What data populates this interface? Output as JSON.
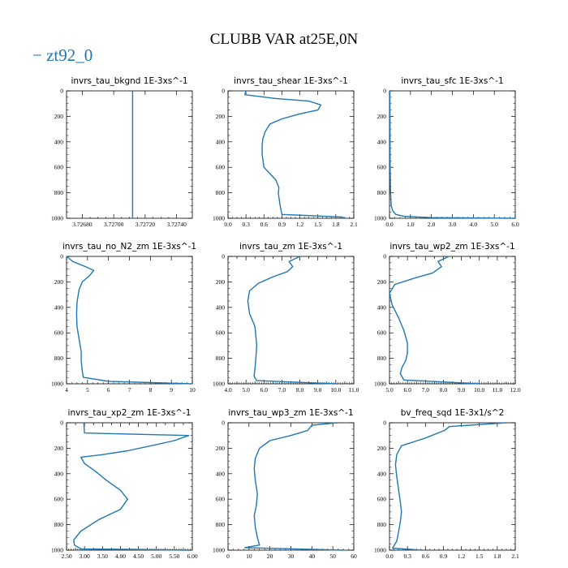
{
  "figure": {
    "title": "CLUBB VAR at25E,0N",
    "legend": {
      "label": "zt92_0",
      "color": "#1f77b4"
    },
    "line_color": "#1f77b4"
  },
  "chart_data": [
    {
      "type": "line",
      "title": "invrs_tau_bkgnd",
      "units": "1E-3xs^-1",
      "xlim": [
        3.7267,
        3.7275
      ],
      "ylim": [
        1000,
        0
      ],
      "xticks": [
        3.7268,
        3.727,
        3.7272,
        3.7274
      ],
      "xtick_labels": [
        "3.72680",
        "3.72700",
        "3.72720",
        "3.72740"
      ],
      "yticks": [
        0,
        200,
        400,
        600,
        800,
        1000
      ],
      "x": [
        3.72712,
        3.72712,
        3.72712
      ],
      "y": [
        0,
        500,
        1000
      ]
    },
    {
      "type": "line",
      "title": "invrs_tau_shear",
      "units": "1E-3xs^-1",
      "xlim": [
        0,
        2.1
      ],
      "ylim": [
        1000,
        0
      ],
      "xticks": [
        0,
        0.3,
        0.6,
        0.9,
        1.2,
        1.5,
        1.8,
        2.1
      ],
      "xtick_labels": [
        "0.0",
        "0.3",
        "0.6",
        "0.9",
        "1.2",
        "1.5",
        "1.8",
        "2.1"
      ],
      "yticks": [
        0,
        200,
        400,
        600,
        800,
        1000
      ],
      "x": [
        0.3,
        0.28,
        0.8,
        1.35,
        1.55,
        1.5,
        1.2,
        0.9,
        0.7,
        0.62,
        0.58,
        0.57,
        0.57,
        0.6,
        0.7,
        0.8,
        0.85,
        0.84,
        0.87,
        0.9,
        1.9,
        1.95
      ],
      "y": [
        0,
        30,
        60,
        80,
        110,
        150,
        180,
        220,
        260,
        320,
        380,
        430,
        500,
        600,
        650,
        700,
        760,
        800,
        900,
        970,
        990,
        1000
      ]
    },
    {
      "type": "line",
      "title": "invrs_tau_sfc",
      "units": "1E-3xs^-1",
      "xlim": [
        0,
        6
      ],
      "ylim": [
        1000,
        0
      ],
      "xticks": [
        0,
        1,
        2,
        3,
        4,
        5,
        6
      ],
      "xtick_labels": [
        "0.0",
        "1.0",
        "2.0",
        "3.0",
        "4.0",
        "5.0",
        "6.0"
      ],
      "yticks": [
        0,
        200,
        400,
        600,
        800,
        1000
      ],
      "x": [
        0.02,
        0.03,
        0.05,
        0.08,
        0.15,
        0.3,
        0.7,
        2.0,
        6.0
      ],
      "y": [
        0,
        600,
        800,
        900,
        940,
        970,
        985,
        995,
        1000
      ]
    },
    {
      "type": "line",
      "title": "invrs_tau_no_N2_zm",
      "units": "1E-3xs^-1",
      "xlim": [
        4,
        10
      ],
      "ylim": [
        1000,
        0
      ],
      "xticks": [
        4,
        5,
        6,
        7,
        8,
        9,
        10
      ],
      "xtick_labels": [
        "4",
        "5",
        "6",
        "7",
        "8",
        "9",
        "10"
      ],
      "yticks": [
        0,
        200,
        400,
        600,
        800,
        1000
      ],
      "x": [
        4.0,
        4.3,
        4.9,
        5.3,
        5.1,
        4.75,
        4.6,
        4.5,
        4.48,
        4.5,
        4.6,
        4.7,
        4.7,
        4.75,
        4.8,
        6.0,
        10.0
      ],
      "y": [
        0,
        40,
        80,
        110,
        150,
        200,
        260,
        360,
        450,
        550,
        650,
        750,
        820,
        900,
        950,
        980,
        1000
      ]
    },
    {
      "type": "line",
      "title": "invrs_tau_zm",
      "units": "1E-3xs^-1",
      "xlim": [
        4,
        11
      ],
      "ylim": [
        1000,
        0
      ],
      "xticks": [
        4,
        4.5,
        5,
        5.5,
        6,
        6.5,
        7,
        7.5,
        8,
        8.5,
        9,
        9.5,
        10,
        10.5,
        11
      ],
      "xtick_labels": [
        "4.0",
        "",
        "5.0",
        "",
        "6.0",
        "",
        "7.0",
        "",
        "8.0",
        "",
        "9.0",
        "",
        "10.0",
        "",
        "11.0"
      ],
      "yticks": [
        0,
        200,
        400,
        600,
        800,
        1000
      ],
      "x": [
        8.0,
        7.4,
        7.6,
        7.3,
        6.5,
        5.7,
        5.2,
        5.1,
        5.2,
        5.5,
        5.6,
        5.55,
        5.5,
        5.45,
        5.6,
        10.0
      ],
      "y": [
        0,
        40,
        80,
        120,
        160,
        210,
        270,
        350,
        450,
        550,
        700,
        800,
        880,
        940,
        975,
        1000
      ]
    },
    {
      "type": "line",
      "title": "invrs_tau_wp2_zm",
      "units": "1E-3xs^-1",
      "xlim": [
        5,
        12
      ],
      "ylim": [
        1000,
        0
      ],
      "xticks": [
        5,
        5.5,
        6,
        6.5,
        7,
        7.5,
        8,
        8.5,
        9,
        9.5,
        10,
        10.5,
        11,
        11.5,
        12
      ],
      "xtick_labels": [
        "5.0",
        "",
        "6.0",
        "",
        "7.0",
        "",
        "8.0",
        "",
        "9.0",
        "",
        "10.0",
        "",
        "11.0",
        "",
        "12.0"
      ],
      "yticks": [
        0,
        200,
        400,
        600,
        800,
        1000
      ],
      "x": [
        8.3,
        7.7,
        7.9,
        7.4,
        6.4,
        5.3,
        5.0,
        5.15,
        5.5,
        5.8,
        6.0,
        6.0,
        5.9,
        5.7,
        5.6,
        5.8,
        10.0
      ],
      "y": [
        0,
        40,
        80,
        130,
        170,
        220,
        290,
        380,
        480,
        580,
        680,
        760,
        820,
        870,
        920,
        970,
        1000
      ]
    },
    {
      "type": "line",
      "title": "invrs_tau_xp2_zm",
      "units": "1E-3xs^-1",
      "xlim": [
        2.5,
        6
      ],
      "ylim": [
        1000,
        0
      ],
      "xticks": [
        2.5,
        2.75,
        3,
        3.25,
        3.5,
        3.75,
        4,
        4.25,
        4.5,
        4.75,
        5,
        5.25,
        5.5,
        5.75,
        6
      ],
      "xtick_labels": [
        "2.50",
        "",
        "3.00",
        "",
        "3.50",
        "",
        "4.00",
        "",
        "4.50",
        "",
        "5.00",
        "",
        "5.50",
        "",
        "6.00"
      ],
      "yticks": [
        0,
        200,
        400,
        600,
        800,
        1000
      ],
      "x": [
        2.98,
        3.0,
        5.9,
        5.5,
        4.7,
        4.2,
        3.5,
        2.9,
        3.0,
        3.3,
        3.6,
        4.0,
        4.2,
        4.0,
        3.4,
        2.9,
        2.7,
        2.72,
        2.9,
        5.9
      ],
      "y": [
        0,
        80,
        100,
        140,
        190,
        220,
        250,
        270,
        320,
        380,
        450,
        530,
        600,
        680,
        760,
        850,
        920,
        960,
        990,
        1000
      ]
    },
    {
      "type": "line",
      "title": "invrs_tau_wp3_zm",
      "units": "1E-3xs^-1",
      "xlim": [
        0,
        60
      ],
      "ylim": [
        1000,
        0
      ],
      "xticks": [
        0,
        10,
        20,
        30,
        40,
        50,
        60
      ],
      "xtick_labels": [
        "0",
        "10",
        "20",
        "30",
        "40",
        "50",
        "60"
      ],
      "yticks": [
        0,
        200,
        400,
        600,
        800,
        1000
      ],
      "x": [
        52.0,
        40.0,
        38.0,
        30.0,
        20.0,
        15.0,
        13.0,
        12.5,
        13.0,
        14.0,
        13.5,
        12.5,
        13.0,
        14.0,
        15.0,
        8.0,
        55.0
      ],
      "y": [
        0,
        20,
        60,
        100,
        140,
        200,
        280,
        360,
        450,
        560,
        650,
        730,
        820,
        900,
        960,
        980,
        1000
      ]
    },
    {
      "type": "line",
      "title": "bv_freq_sqd",
      "units": "1E-3x1/s^2",
      "xlim": [
        0,
        2.1
      ],
      "ylim": [
        1000,
        0
      ],
      "xticks": [
        0,
        0.3,
        0.6,
        0.9,
        1.2,
        1.5,
        1.8,
        2.1
      ],
      "xtick_labels": [
        "0.0",
        "0.3",
        "0.6",
        "0.9",
        "1.2",
        "1.5",
        "1.8",
        "2.1"
      ],
      "yticks": [
        0,
        200,
        400,
        600,
        800,
        1000
      ],
      "x": [
        1.95,
        1.0,
        0.92,
        0.6,
        0.2,
        0.12,
        0.1,
        0.12,
        0.15,
        0.18,
        0.2,
        0.18,
        0.15,
        0.12,
        0.05,
        0.55
      ],
      "y": [
        0,
        30,
        60,
        120,
        180,
        250,
        330,
        420,
        520,
        620,
        700,
        780,
        860,
        930,
        985,
        1000
      ]
    }
  ]
}
